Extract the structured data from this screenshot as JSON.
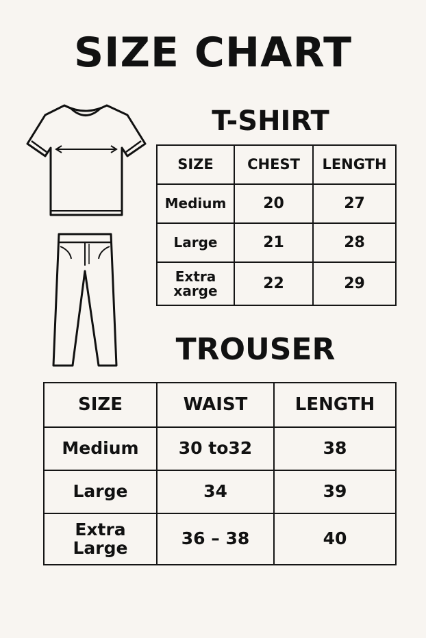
{
  "title": "SIZE CHART",
  "icons": {
    "tshirt": "tshirt-icon",
    "trousers": "trousers-icon"
  },
  "tshirt": {
    "heading": "T-SHIRT",
    "headers": [
      "SIZE",
      "CHEST",
      "LENGTH"
    ],
    "rows": [
      [
        "Medium",
        "20",
        "27"
      ],
      [
        "Large",
        "21",
        "28"
      ],
      [
        "Extra xarge",
        "22",
        "29"
      ]
    ]
  },
  "trouser": {
    "heading": "TROUSER",
    "headers": [
      "SIZE",
      "WAIST",
      "LENGTH"
    ],
    "rows": [
      [
        "Medium",
        "30 to32",
        "38"
      ],
      [
        "Large",
        "34",
        "39"
      ],
      [
        "Extra Large",
        "36 – 38",
        "40"
      ]
    ]
  }
}
